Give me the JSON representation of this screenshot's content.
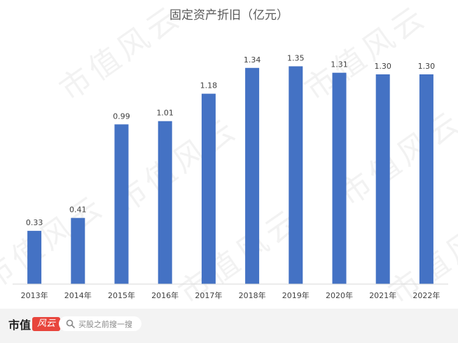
{
  "chart_data": {
    "type": "bar",
    "title": "固定资产折旧（亿元）",
    "categories": [
      "2013年",
      "2014年",
      "2015年",
      "2016年",
      "2017年",
      "2018年",
      "2019年",
      "2020年",
      "2021年",
      "2022年"
    ],
    "values": [
      0.33,
      0.41,
      0.99,
      1.01,
      1.18,
      1.34,
      1.35,
      1.31,
      1.3,
      1.3
    ],
    "value_labels": [
      "0.33",
      "0.41",
      "0.99",
      "1.01",
      "1.18",
      "1.34",
      "1.35",
      "1.31",
      "1.30",
      "1.30"
    ],
    "ylim": [
      0,
      1.6
    ],
    "grid": false,
    "bar_color": "#4472c4"
  },
  "watermark": {
    "text": "市值风云"
  },
  "footer": {
    "brand_text": "市值",
    "brand_seal": "风云",
    "search_placeholder": "买股之前搜一搜"
  }
}
